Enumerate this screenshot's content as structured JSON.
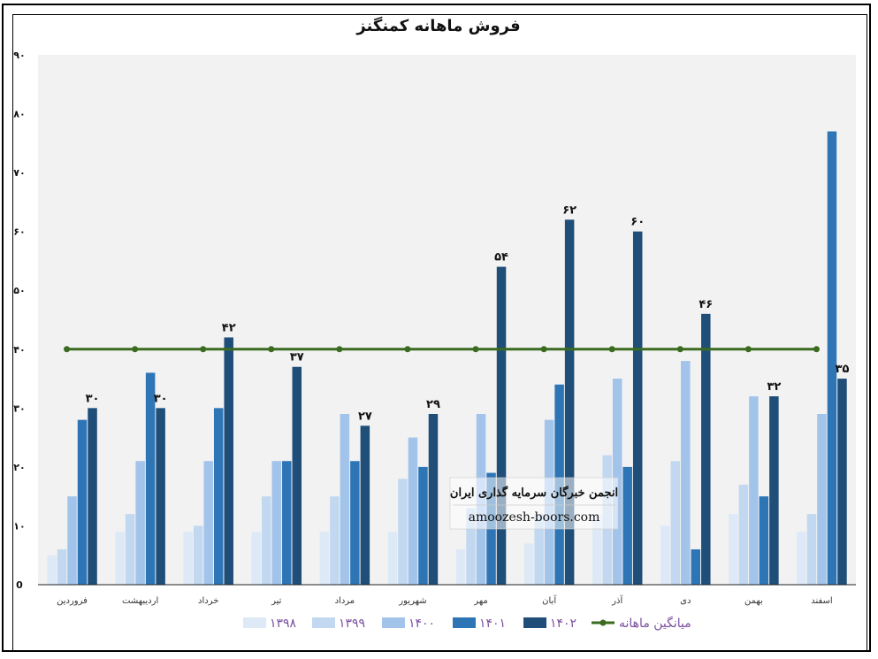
{
  "chart_data": {
    "type": "bar",
    "title": "فروش ماهانه کمنگنز",
    "xlabel": "",
    "ylabel": "",
    "ylim": [
      0,
      90
    ],
    "yticks": [
      "0",
      "۱۰",
      "۲۰",
      "۳۰",
      "۴۰",
      "۵۰",
      "۶۰",
      "۷۰",
      "۸۰",
      "۹۰"
    ],
    "categories": [
      "فروردین",
      "اردیبهشت",
      "خرداد",
      "تیر",
      "مرداد",
      "شهریور",
      "مهر",
      "آبان",
      "آذر",
      "دی",
      "بهمن",
      "اسفند"
    ],
    "series": [
      {
        "name": "۱۳۹۸",
        "color": "#dde9f7",
        "values": [
          5,
          9,
          9,
          9,
          9,
          9,
          6,
          7,
          12,
          10,
          12,
          9
        ]
      },
      {
        "name": "۱۳۹۹",
        "color": "#c2d8f0",
        "values": [
          6,
          12,
          10,
          15,
          15,
          18,
          13,
          12,
          22,
          21,
          17,
          12
        ]
      },
      {
        "name": "۱۴۰۰",
        "color": "#a2c4ea",
        "values": [
          15,
          21,
          21,
          21,
          29,
          25,
          29,
          28,
          35,
          38,
          32,
          29
        ]
      },
      {
        "name": "۱۴۰۱",
        "color": "#2e75b6",
        "values": [
          28,
          36,
          30,
          21,
          21,
          20,
          19,
          34,
          20,
          6,
          15,
          77
        ]
      },
      {
        "name": "۱۴۰۲",
        "color": "#1f4e79",
        "values": [
          30,
          30,
          42,
          37,
          27,
          29,
          54,
          62,
          60,
          46,
          32,
          35
        ],
        "data_labels": [
          "۳۰",
          "۳۰",
          "۴۲",
          "۳۷",
          "۲۷",
          "۲۹",
          "۵۴",
          "۶۲",
          "۶۰",
          "۴۶",
          "۳۲",
          "۳۵"
        ]
      }
    ],
    "line_series": {
      "name": "میانگین ماهانه",
      "color": "#3a6b1f",
      "values": [
        40,
        40,
        40,
        40,
        40,
        40,
        40,
        40,
        40,
        40,
        40,
        40
      ]
    },
    "legend_position": "bottom",
    "grid": false,
    "plot_background": "#f2f2f2"
  },
  "watermark": {
    "title": "انجمن خبرگان سرمایه گذاری ایران",
    "url": "amoozesh-boors.com"
  }
}
